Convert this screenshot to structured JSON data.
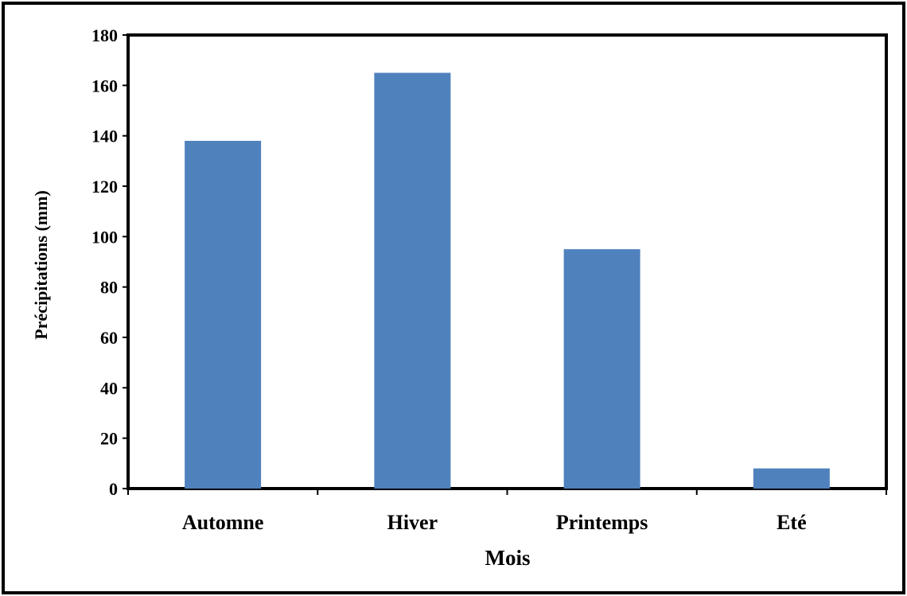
{
  "chart_data": {
    "type": "bar",
    "title": "",
    "xlabel": "Mois",
    "ylabel": "Précipitations (mm)",
    "categories": [
      "Automne",
      "Hiver",
      "Printemps",
      "Eté"
    ],
    "values": [
      138,
      165,
      95,
      8
    ],
    "ylim": [
      0,
      180
    ],
    "yticks": [
      0,
      20,
      40,
      60,
      80,
      100,
      120,
      140,
      160,
      180
    ],
    "grid": false,
    "legend": "none",
    "bar_color": "#4f81bd"
  }
}
